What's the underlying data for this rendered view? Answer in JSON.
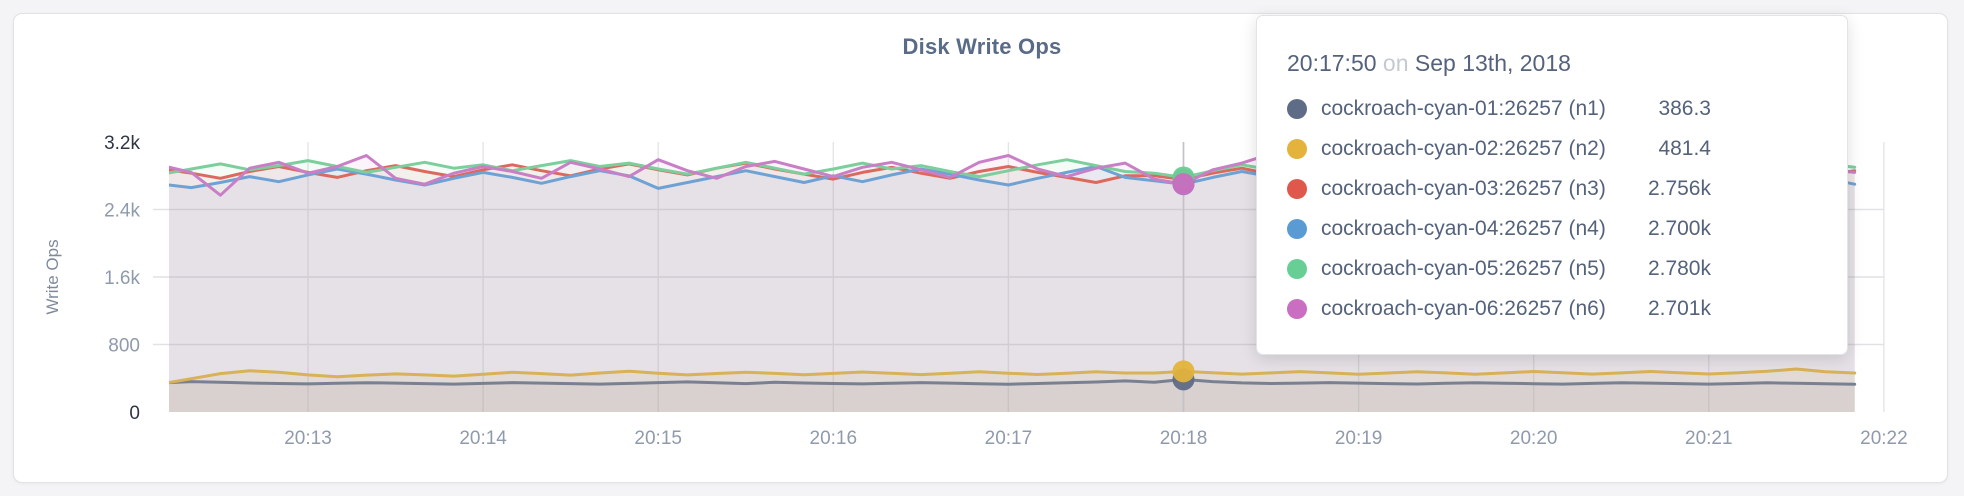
{
  "panel": {
    "title": "Disk Write Ops"
  },
  "tooltip": {
    "time": "20:17:50",
    "on_word": "on",
    "date": "Sep 13th, 2018",
    "rows": [
      {
        "name": "cockroach-cyan-01:26257 (n1)",
        "value": "386.3",
        "color": "#5F6C87"
      },
      {
        "name": "cockroach-cyan-02:26257 (n2)",
        "value": "481.4",
        "color": "#E3B33C"
      },
      {
        "name": "cockroach-cyan-03:26257 (n3)",
        "value": "2.756k",
        "color": "#E0584C"
      },
      {
        "name": "cockroach-cyan-04:26257 (n4)",
        "value": "2.700k",
        "color": "#5B9BD3"
      },
      {
        "name": "cockroach-cyan-05:26257 (n5)",
        "value": "2.780k",
        "color": "#67CF96"
      },
      {
        "name": "cockroach-cyan-06:26257 (n6)",
        "value": "2.701k",
        "color": "#C96EC0"
      }
    ]
  },
  "chart_data": {
    "type": "line",
    "title": "Disk Write Ops",
    "ylabel": "Write Ops",
    "xlabel": "",
    "ylim": [
      0,
      3200
    ],
    "grid": true,
    "legend_position": "tooltip-overlay",
    "y_ticks": [
      {
        "value": 0,
        "label": "0",
        "dark": true
      },
      {
        "value": 800,
        "label": "800",
        "dark": false
      },
      {
        "value": 1600,
        "label": "1.6k",
        "dark": false
      },
      {
        "value": 2400,
        "label": "2.4k",
        "dark": false
      },
      {
        "value": 3200,
        "label": "3.2k",
        "dark": true
      }
    ],
    "x_ticks": [
      "20:13",
      "20:14",
      "20:15",
      "20:16",
      "20:17",
      "20:18",
      "20:19",
      "20:20",
      "20:21",
      "20:22"
    ],
    "x_start": "20:12:10",
    "x_step_seconds": 10,
    "hover_index": 35,
    "hover_time_label": "20:17:50",
    "series": [
      {
        "name": "cockroach-cyan-01:26257 (n1)",
        "line_color": "#798092",
        "dot_color": "#5F6C87",
        "area_opacity": 0.1,
        "values": [
          345,
          360,
          352,
          344,
          338,
          333,
          340,
          347,
          342,
          336,
          331,
          339,
          348,
          343,
          336,
          331,
          339,
          349,
          357,
          346,
          337,
          352,
          344,
          338,
          333,
          341,
          348,
          342,
          335,
          330,
          338,
          347,
          356,
          368,
          352,
          386.3,
          360,
          345,
          338,
          342,
          349,
          343,
          337,
          332,
          340,
          347,
          341,
          335,
          331,
          339,
          347,
          342,
          336,
          331,
          338,
          346,
          340,
          334,
          330
        ]
      },
      {
        "name": "cockroach-cyan-02:26257 (n2)",
        "line_color": "#D9B156",
        "dot_color": "#E3B33C",
        "area_opacity": 0.12,
        "values": [
          335,
          395,
          455,
          490,
          470,
          440,
          418,
          437,
          452,
          440,
          425,
          447,
          470,
          455,
          437,
          462,
          483,
          460,
          440,
          456,
          472,
          458,
          442,
          458,
          474,
          459,
          443,
          459,
          476,
          460,
          444,
          460,
          477,
          462,
          462,
          481.4,
          466,
          449,
          464,
          479,
          463,
          447,
          462,
          478,
          463,
          448,
          463,
          480,
          465,
          449,
          464,
          480,
          465,
          450,
          465,
          482,
          510,
          478,
          462
        ]
      },
      {
        "name": "cockroach-cyan-03:26257 (n3)",
        "line_color": "#DC695E",
        "dot_color": "#E0584C",
        "area_opacity": 0.08,
        "values": [
          2880,
          2830,
          2770,
          2850,
          2910,
          2840,
          2780,
          2860,
          2920,
          2850,
          2790,
          2870,
          2930,
          2860,
          2800,
          2880,
          2940,
          2870,
          2810,
          2890,
          2950,
          2880,
          2820,
          2760,
          2840,
          2900,
          2830,
          2770,
          2850,
          2910,
          2840,
          2780,
          2720,
          2800,
          2800,
          2756,
          2830,
          2890,
          2820,
          2760,
          2840,
          2900,
          2830,
          2770,
          2850,
          2910,
          2840,
          2780,
          2860,
          2920,
          2850,
          2790,
          2860,
          2800,
          2740,
          2820,
          2880,
          2810,
          2860
        ]
      },
      {
        "name": "cockroach-cyan-04:26257 (n4)",
        "line_color": "#6FA2D4",
        "dot_color": "#5B9BD3",
        "area_opacity": 0.08,
        "values": [
          2700,
          2660,
          2720,
          2790,
          2730,
          2810,
          2880,
          2820,
          2750,
          2690,
          2770,
          2840,
          2780,
          2710,
          2790,
          2860,
          2800,
          2650,
          2720,
          2790,
          2860,
          2790,
          2720,
          2800,
          2730,
          2810,
          2880,
          2820,
          2750,
          2690,
          2770,
          2840,
          2910,
          2780,
          2740,
          2700,
          2780,
          2850,
          2790,
          2720,
          2800,
          2870,
          2800,
          2730,
          2810,
          2880,
          2810,
          2740,
          2820,
          2890,
          2820,
          2750,
          2830,
          2900,
          2830,
          2760,
          2840,
          2770,
          2700
        ]
      },
      {
        "name": "cockroach-cyan-05:26257 (n5)",
        "line_color": "#7CCF9C",
        "dot_color": "#67CF96",
        "area_opacity": 0.08,
        "values": [
          2820,
          2880,
          2940,
          2870,
          2920,
          2980,
          2910,
          2840,
          2900,
          2960,
          2890,
          2930,
          2860,
          2920,
          2980,
          2910,
          2950,
          2880,
          2820,
          2890,
          2960,
          2890,
          2820,
          2880,
          2950,
          2880,
          2920,
          2850,
          2790,
          2860,
          2930,
          2990,
          2920,
          2850,
          2830,
          2780,
          2860,
          2930,
          2870,
          2940,
          2870,
          2800,
          2870,
          2940,
          2880,
          2820,
          2890,
          2960,
          2890,
          2830,
          2900,
          2960,
          2890,
          2930,
          2860,
          2800,
          2870,
          2940,
          2900
        ]
      },
      {
        "name": "cockroach-cyan-06:26257 (n6)",
        "line_color": "#C97FC6",
        "dot_color": "#C96EC0",
        "area_opacity": 0.08,
        "values": [
          2920,
          2840,
          2570,
          2890,
          2960,
          2830,
          2910,
          3040,
          2770,
          2700,
          2830,
          2910,
          2850,
          2770,
          2960,
          2880,
          2790,
          2990,
          2860,
          2770,
          2910,
          2970,
          2880,
          2790,
          2900,
          2960,
          2870,
          2780,
          2960,
          3040,
          2880,
          2790,
          2890,
          2950,
          2760,
          2701,
          2870,
          2950,
          3060,
          2890,
          2800,
          2890,
          2950,
          2870,
          2790,
          2960,
          3030,
          2880,
          2800,
          2890,
          2950,
          2860,
          2780,
          2950,
          3060,
          2900,
          2810,
          2880,
          2840
        ]
      }
    ]
  }
}
